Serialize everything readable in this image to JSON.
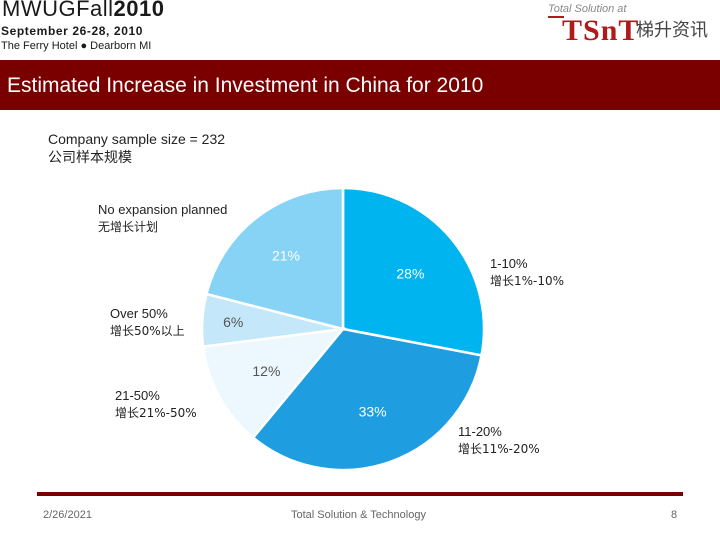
{
  "header": {
    "event_prefix": "MWUG",
    "event_fall": "Fall",
    "event_year": "2010",
    "dates": "September 26-28, 2010",
    "venue": "The Ferry Hotel  ●  Dearborn  MI",
    "sponsor_tag": "Total Solution at",
    "sponsor_brand": "TSnT",
    "sponsor_cn": "梯升资讯"
  },
  "title": "Estimated Increase in Investment in China for 2010",
  "sample": {
    "line1": "Company sample size = 232",
    "line2": "公司样本规模"
  },
  "chart_data": {
    "type": "pie",
    "title": "Estimated Increase in Investment in China for 2010",
    "slices": [
      {
        "label_en": "1-10%",
        "label_cn": "增长1%-10%",
        "value": 28,
        "pct_label": "28%",
        "color": "#00b4f0",
        "text_color": "#ffffff"
      },
      {
        "label_en": "11-20%",
        "label_cn": "增长11%-20%",
        "value": 33,
        "pct_label": "33%",
        "color": "#1e9ee0",
        "text_color": "#ffffff"
      },
      {
        "label_en": "21-50%",
        "label_cn": "增长21%-50%",
        "value": 12,
        "pct_label": "12%",
        "color": "#edf8fe",
        "text_color": "#555555"
      },
      {
        "label_en": "Over 50%",
        "label_cn": "增长50%以上",
        "value": 6,
        "pct_label": "6%",
        "color": "#c4e8f9",
        "text_color": "#555555"
      },
      {
        "label_en": "No expansion planned",
        "label_cn": "无增长计划",
        "value": 21,
        "pct_label": "21%",
        "color": "#86d3f5",
        "text_color": "#ffffff"
      }
    ]
  },
  "footer": {
    "date": "2/26/2021",
    "center": "Total Solution & Technology",
    "page": "8"
  }
}
